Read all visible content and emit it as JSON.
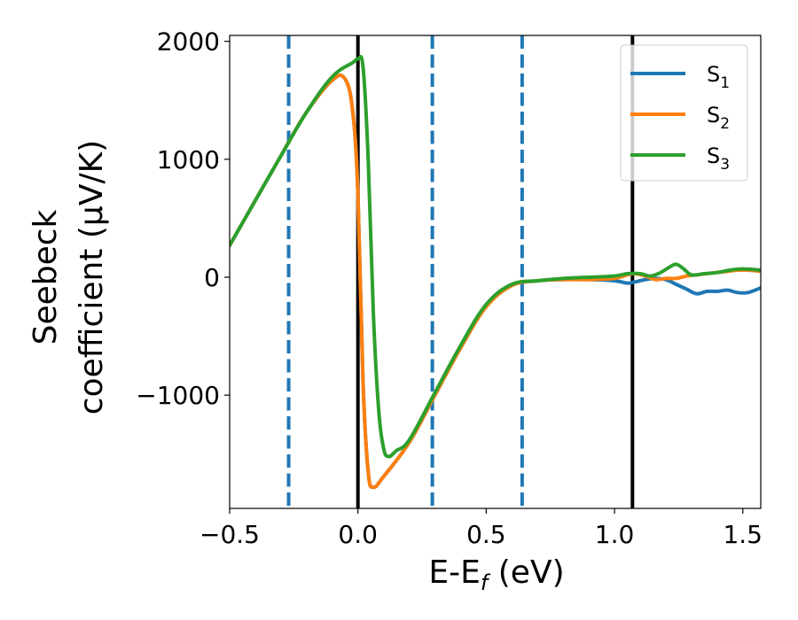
{
  "chart_data": {
    "type": "line",
    "xlabel": {
      "main": "E-E",
      "sub": "f",
      "tail": " (eV)"
    },
    "ylabel": {
      "line1": "Seebeck",
      "line2": "coefficient  (μV/K)"
    },
    "xlim": [
      -0.5,
      1.57
    ],
    "ylim": [
      -1960,
      2050
    ],
    "x_ticks": [
      -0.5,
      0.0,
      0.5,
      1.0,
      1.5
    ],
    "x_tick_labels": [
      "−0.5",
      "0.0",
      "0.5",
      "1.0",
      "1.5"
    ],
    "y_ticks": [
      -1000,
      0,
      1000,
      2000
    ],
    "y_tick_labels": [
      "−1000",
      "0",
      "1000",
      "2000"
    ],
    "grid": false,
    "legend_position": "top-right",
    "vertical_lines": [
      {
        "x": -0.27,
        "style": "dashed",
        "color": "#1f77b4"
      },
      {
        "x": 0.0,
        "style": "solid",
        "color": "#000000"
      },
      {
        "x": 0.29,
        "style": "dashed",
        "color": "#1f77b4"
      },
      {
        "x": 0.64,
        "style": "dashed",
        "color": "#1f77b4"
      },
      {
        "x": 1.07,
        "style": "solid",
        "color": "#000000"
      }
    ],
    "series": [
      {
        "name": "S",
        "sub": "1",
        "color": "#1f77b4",
        "x": [
          -0.5,
          -0.4,
          -0.3,
          -0.2,
          -0.1,
          -0.05,
          -0.02,
          0.0,
          0.02,
          0.04,
          0.06,
          0.1,
          0.2,
          0.3,
          0.4,
          0.5,
          0.6,
          0.7,
          0.8,
          0.9,
          1.0,
          1.05,
          1.08,
          1.12,
          1.16,
          1.2,
          1.24,
          1.28,
          1.32,
          1.36,
          1.4,
          1.44,
          1.48,
          1.52,
          1.57
        ],
        "y": [
          270,
          650,
          1030,
          1400,
          1670,
          1680,
          1400,
          700,
          -900,
          -1650,
          -1780,
          -1690,
          -1400,
          -1000,
          -600,
          -250,
          -70,
          -30,
          -20,
          -20,
          -30,
          -50,
          -40,
          -20,
          -10,
          -20,
          -60,
          -100,
          -140,
          -120,
          -120,
          -110,
          -130,
          -130,
          -90
        ]
      },
      {
        "name": "S",
        "sub": "2",
        "color": "#ff7f0e",
        "x": [
          -0.5,
          -0.4,
          -0.3,
          -0.2,
          -0.1,
          -0.05,
          -0.02,
          0.0,
          0.02,
          0.04,
          0.06,
          0.1,
          0.2,
          0.3,
          0.4,
          0.5,
          0.6,
          0.7,
          0.8,
          0.9,
          1.0,
          1.05,
          1.08,
          1.12,
          1.16,
          1.2,
          1.24,
          1.28,
          1.32,
          1.36,
          1.4,
          1.44,
          1.48,
          1.52,
          1.57
        ],
        "y": [
          270,
          650,
          1030,
          1400,
          1670,
          1680,
          1400,
          700,
          -900,
          -1650,
          -1780,
          -1690,
          -1400,
          -1000,
          -600,
          -250,
          -70,
          -30,
          -20,
          -20,
          -10,
          20,
          30,
          10,
          -20,
          -10,
          -10,
          10,
          20,
          30,
          40,
          50,
          60,
          60,
          50
        ]
      },
      {
        "name": "S",
        "sub": "3",
        "color": "#2ca02c",
        "x": [
          -0.5,
          -0.4,
          -0.3,
          -0.2,
          -0.1,
          -0.02,
          0.0,
          0.02,
          0.04,
          0.06,
          0.08,
          0.1,
          0.12,
          0.15,
          0.2,
          0.3,
          0.4,
          0.5,
          0.6,
          0.7,
          0.8,
          0.9,
          1.0,
          1.05,
          1.1,
          1.14,
          1.18,
          1.21,
          1.24,
          1.27,
          1.3,
          1.35,
          1.4,
          1.45,
          1.5,
          1.57
        ],
        "y": [
          270,
          650,
          1030,
          1400,
          1700,
          1820,
          1850,
          1780,
          1000,
          -300,
          -1100,
          -1450,
          -1520,
          -1470,
          -1380,
          -980,
          -580,
          -230,
          -60,
          -30,
          -10,
          0,
          10,
          30,
          30,
          10,
          40,
          80,
          110,
          70,
          20,
          30,
          40,
          60,
          70,
          60
        ]
      }
    ]
  }
}
